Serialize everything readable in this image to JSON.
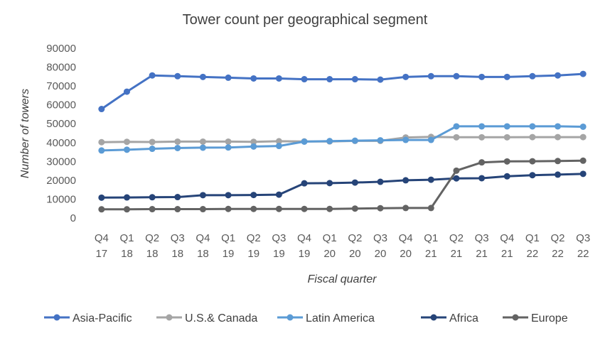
{
  "chart_data": {
    "type": "line",
    "title": "Tower count per geographical segment",
    "xlabel": "Fiscal quarter",
    "ylabel": "Number of towers",
    "ylim": [
      0,
      90000
    ],
    "yticks": [
      "0",
      "10000",
      "20000",
      "30000",
      "40000",
      "50000",
      "60000",
      "70000",
      "80000",
      "90000"
    ],
    "grid": false,
    "legend_position": "bottom",
    "categories": [
      [
        "Q4",
        "17"
      ],
      [
        "Q1",
        "18"
      ],
      [
        "Q2",
        "18"
      ],
      [
        "Q3",
        "18"
      ],
      [
        "Q4",
        "18"
      ],
      [
        "Q1",
        "19"
      ],
      [
        "Q2",
        "19"
      ],
      [
        "Q3",
        "19"
      ],
      [
        "Q4",
        "19"
      ],
      [
        "Q1",
        "20"
      ],
      [
        "Q2",
        "20"
      ],
      [
        "Q3",
        "20"
      ],
      [
        "Q4",
        "20"
      ],
      [
        "Q1",
        "21"
      ],
      [
        "Q2",
        "21"
      ],
      [
        "Q3",
        "21"
      ],
      [
        "Q4",
        "21"
      ],
      [
        "Q1",
        "22"
      ],
      [
        "Q2",
        "22"
      ],
      [
        "Q3",
        "22"
      ]
    ],
    "series": [
      {
        "name": "Asia-Pacific",
        "color": "#4472C4",
        "values": [
          57800,
          67000,
          75600,
          75200,
          74800,
          74400,
          74000,
          74000,
          73600,
          73600,
          73600,
          73400,
          74800,
          75200,
          75200,
          74800,
          74800,
          75200,
          75600,
          76400
        ]
      },
      {
        "name": "U.S.& Canada",
        "color": "#A5A5A5",
        "values": [
          40200,
          40400,
          40300,
          40500,
          40500,
          40500,
          40400,
          40700,
          40600,
          40600,
          40900,
          40900,
          42700,
          43000,
          42800,
          42800,
          42800,
          42900,
          42900,
          42900
        ]
      },
      {
        "name": "Latin America",
        "color": "#5B9BD5",
        "values": [
          35800,
          36200,
          36700,
          37100,
          37300,
          37400,
          37900,
          38200,
          40500,
          40800,
          41000,
          41200,
          41400,
          41400,
          48600,
          48600,
          48600,
          48600,
          48600,
          48400
        ]
      },
      {
        "name": "Africa",
        "color": "#264478",
        "values": [
          10800,
          10900,
          11000,
          11100,
          12100,
          12100,
          12200,
          12400,
          18400,
          18500,
          18800,
          19200,
          20000,
          20300,
          21000,
          21100,
          22100,
          22700,
          23000,
          23400
        ]
      },
      {
        "name": "Europe",
        "color": "#636363",
        "values": [
          4600,
          4600,
          4700,
          4700,
          4700,
          4800,
          4800,
          4800,
          4800,
          4800,
          5000,
          5200,
          5300,
          5300,
          25100,
          29500,
          30000,
          30100,
          30200,
          30400
        ]
      }
    ]
  }
}
